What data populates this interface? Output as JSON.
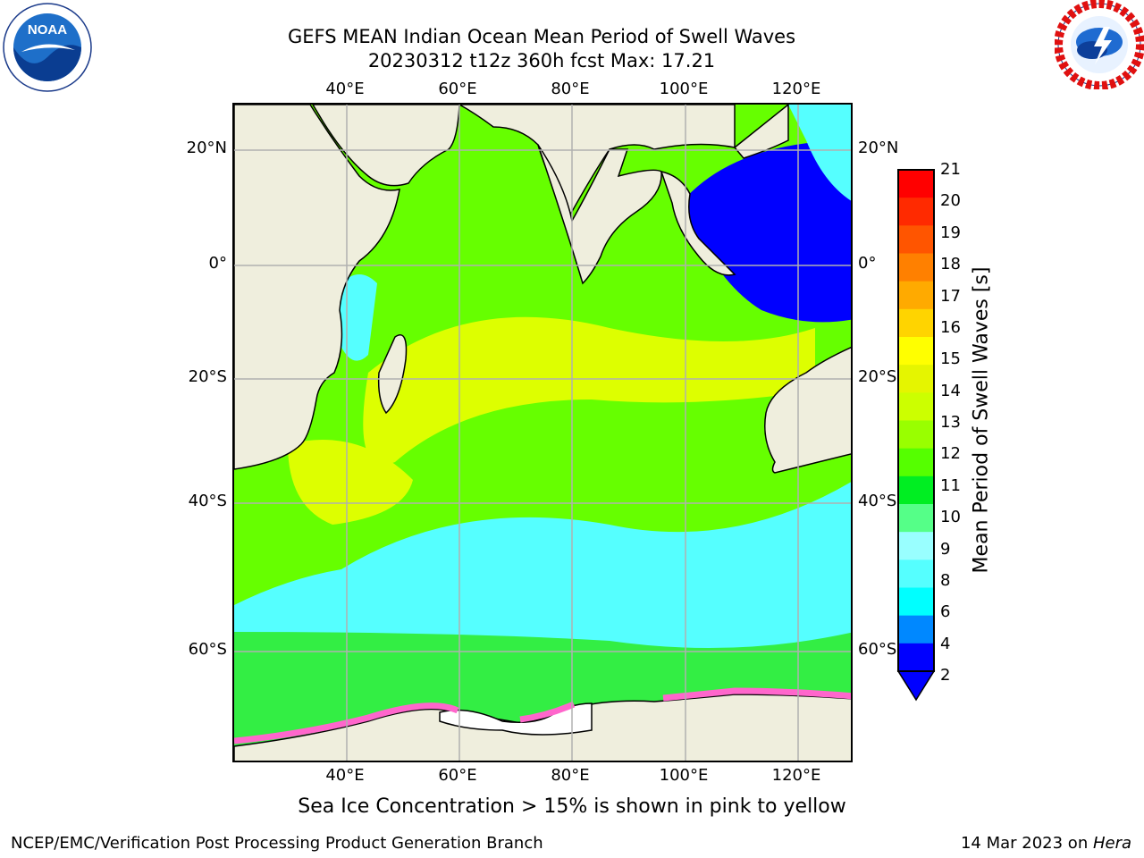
{
  "title": {
    "line1": "GEFS MEAN Indian Ocean Mean Period of Swell Waves",
    "line2": "20230312 t12z 360h fcst   Max: 17.21"
  },
  "axes": {
    "lon_ticks": [
      "40°E",
      "60°E",
      "80°E",
      "100°E",
      "120°E"
    ],
    "lat_ticks": [
      "20°N",
      "0°",
      "20°S",
      "40°S",
      "60°S"
    ]
  },
  "colorbar": {
    "title": "Mean Period of Swell Waves [s]",
    "labels": [
      "21",
      "20",
      "19",
      "18",
      "17",
      "16",
      "15",
      "14",
      "13",
      "12",
      "11",
      "10",
      "9",
      "8",
      "6",
      "4",
      "2"
    ],
    "colors": [
      "#ff0000",
      "#ff2a00",
      "#ff5500",
      "#ff8000",
      "#ffaa00",
      "#ffd400",
      "#ffff00",
      "#e5f500",
      "#ccff00",
      "#99ff00",
      "#55ff00",
      "#00ee22",
      "#55ff88",
      "#99ffff",
      "#55ffff",
      "#00ffff",
      "#0088ff",
      "#0000ff"
    ]
  },
  "footnote": "Sea Ice Concentration > 15% is shown in pink to yellow",
  "credit": "NCEP/EMC/Verification Post Processing Product Generation Branch",
  "date": {
    "text": "14 Mar 2023 on ",
    "machine": "Hera"
  },
  "logos": {
    "left": "noaa-logo",
    "left_text": "NOAA",
    "right": "nws-logo"
  },
  "map_colors": {
    "land": "#efeedd",
    "ocean_main": "#66ff00",
    "ocean_south": "#33ee44",
    "ocean_cyan": "#55ffff",
    "ocean_yellow": "#ddff00",
    "indonesia": "#0000ff",
    "ice": "#ff66cc",
    "grid": "#b0b0b0"
  }
}
